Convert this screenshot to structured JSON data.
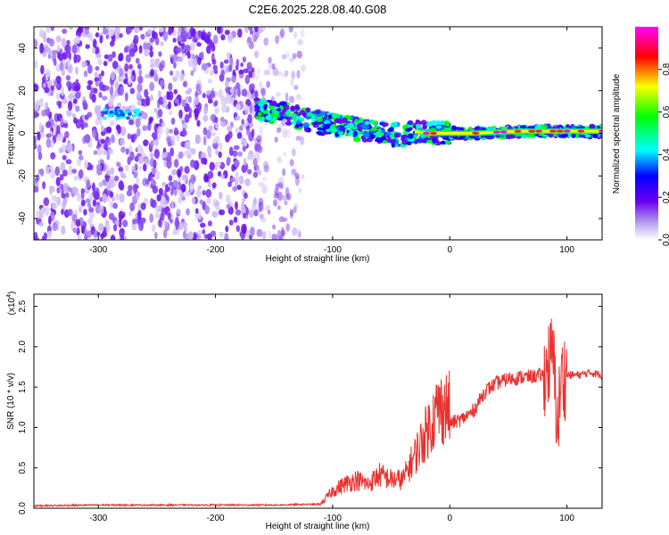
{
  "title": "C2E6.2025.228.08.40.G08",
  "chart_data": [
    {
      "type": "heatmap",
      "xlabel": "Height of straight line (km)",
      "ylabel": "Frequency (Hz)",
      "xlim": [
        -355,
        130
      ],
      "ylim": [
        -50,
        50
      ],
      "xticks": [
        -300,
        -200,
        -100,
        0,
        100
      ],
      "yticks": [
        -40,
        -20,
        0,
        20,
        40
      ],
      "colorbar": {
        "label": "Normalized spectral amplitude",
        "range": [
          0,
          1
        ],
        "ticks": [
          "0.0",
          "0.2",
          "0.4",
          "0.6",
          "0.8"
        ],
        "colors": [
          "#ffffff",
          "#b7a0f0",
          "#6a00f0",
          "#0000ff",
          "#00ffff",
          "#00ff00",
          "#ffff00",
          "#ff0000",
          "#ff00ff"
        ]
      },
      "ridge": {
        "x": [
          -355,
          -300,
          -290,
          -270,
          -160,
          -140,
          -120,
          -100,
          -80,
          -60,
          -40,
          -30,
          -20,
          0,
          20,
          60,
          80,
          90,
          100,
          130
        ],
        "y": [
          9,
          9,
          10,
          8,
          11,
          9,
          6,
          4,
          2,
          0,
          -1,
          1,
          0,
          0,
          0,
          1,
          1,
          1,
          1,
          1
        ]
      }
    },
    {
      "type": "line",
      "xlabel": "Height of straight line (km)",
      "ylabel": "SNR (10 * v/v)",
      "multiplier_label": "(x10",
      "multiplier_exp": "4",
      "multiplier_close": ")",
      "xlim": [
        -355,
        130
      ],
      "ylim": [
        0,
        2.65
      ],
      "xticks": [
        -300,
        -200,
        -100,
        0,
        100
      ],
      "yticks": [
        "0.0",
        "0.5",
        "1.0",
        "1.5",
        "2.0",
        "2.5"
      ],
      "color": "#e8322f",
      "series": [
        {
          "x": [
            -355,
            -300,
            -250,
            -200,
            -150,
            -110,
            -100,
            -90,
            -80,
            -70,
            -60,
            -50,
            -40,
            -30,
            -20,
            -10,
            0,
            10,
            20,
            30,
            40,
            50,
            60,
            70,
            80,
            85,
            88,
            90,
            92,
            95,
            100,
            110,
            120,
            130
          ],
          "values": [
            0.03,
            0.04,
            0.04,
            0.04,
            0.04,
            0.05,
            0.18,
            0.25,
            0.3,
            0.25,
            0.35,
            0.3,
            0.3,
            0.55,
            0.8,
            1.05,
            1.05,
            1.1,
            1.2,
            1.45,
            1.55,
            1.6,
            1.62,
            1.63,
            1.65,
            1.8,
            1.9,
            1.5,
            1.0,
            1.6,
            1.65,
            1.65,
            1.68,
            1.65
          ]
        }
      ]
    }
  ]
}
